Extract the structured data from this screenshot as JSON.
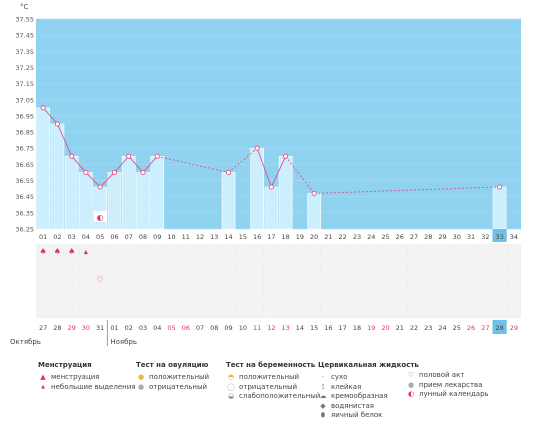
{
  "chart_data": {
    "type": "line",
    "unit_label": "°C",
    "y_ticks": [
      "37.55",
      "37.45",
      "37.35",
      "37.25",
      "37.15",
      "37.05",
      "36.95",
      "36.85",
      "36.75",
      "36.65",
      "36.55",
      "36.45",
      "36.35",
      "36.25"
    ],
    "ylim": [
      36.25,
      37.55
    ],
    "cycle_days": [
      "01",
      "02",
      "03",
      "04",
      "05",
      "06",
      "07",
      "08",
      "09",
      "10",
      "11",
      "12",
      "13",
      "14",
      "15",
      "16",
      "17",
      "18",
      "19",
      "20",
      "21",
      "22",
      "23",
      "24",
      "25",
      "26",
      "27",
      "28",
      "29",
      "30",
      "31",
      "32",
      "33",
      "34"
    ],
    "current_day_index": 32,
    "series": [
      {
        "values": [
          37.0,
          36.9,
          36.7,
          36.6,
          36.51,
          36.6,
          36.7,
          36.6,
          36.7,
          null,
          null,
          null,
          null,
          36.6,
          null,
          36.75,
          36.51,
          36.7,
          null,
          36.47,
          null,
          null,
          null,
          null,
          null,
          null,
          null,
          null,
          null,
          null,
          null,
          null,
          36.51,
          null
        ]
      }
    ],
    "dates": [
      "27",
      "28",
      "29",
      "30",
      "31",
      "01",
      "02",
      "03",
      "04",
      "05",
      "06",
      "07",
      "08",
      "09",
      "10",
      "11",
      "12",
      "13",
      "14",
      "15",
      "16",
      "17",
      "18",
      "19",
      "20",
      "21",
      "22",
      "23",
      "24",
      "25",
      "26",
      "27",
      "28",
      "29"
    ],
    "date_highlight": [
      "29",
      "30",
      "05",
      "06",
      "11",
      "12",
      "13",
      "19",
      "20",
      "26",
      "27"
    ],
    "months": [
      "Октябрь",
      "Ноябрь"
    ],
    "moon_day_index": 4,
    "intercourse_day_index": 4,
    "menstruation_day_indices": [
      0,
      1,
      2
    ],
    "light_bleeding_day_indices": [
      3
    ]
  },
  "legend": {
    "menstruation": {
      "title": "Менструация",
      "items": [
        "менструация",
        "небольшие выделения"
      ]
    },
    "ovulation": {
      "title": "Тест на овуляцию",
      "items": [
        "положительный",
        "отрицательный"
      ]
    },
    "pregnancy": {
      "title": "Тест на беременность",
      "items": [
        "положительный",
        "отрицательный",
        "слабоположительный"
      ]
    },
    "cervical": {
      "title": "Цервикальная жидкость",
      "items": [
        "сухо",
        "клейкая",
        "кремообразная",
        "водянистая",
        "яичный белок"
      ]
    },
    "other": {
      "items": [
        "половой акт",
        "прием лекарства",
        "лунный календарь"
      ]
    }
  },
  "colors": {
    "blue": "#8fd3f0",
    "bar": "#cdeefc",
    "grid": "#bfe6f7",
    "line": "#e0508a",
    "red": "#e0306a",
    "sel": "#6fc2e6"
  }
}
